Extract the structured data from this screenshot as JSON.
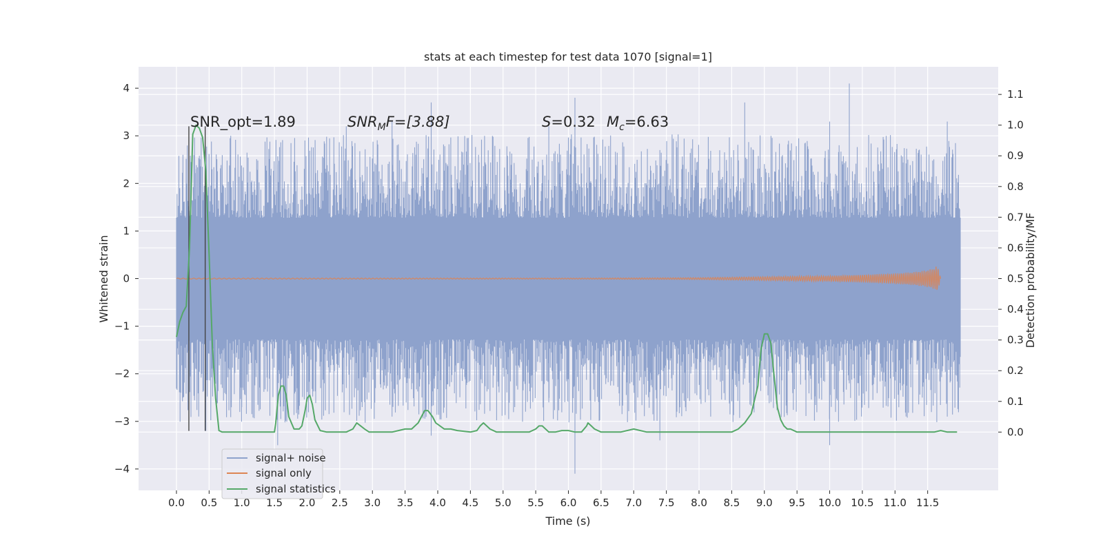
{
  "chart_data": {
    "type": "line",
    "title": "stats at each timestep for test data 1070 [signal=1]",
    "xlabel": "Time (s)",
    "ylabel": "Whitened strain",
    "ylabel_right": "Detection probability/MF",
    "xlim": [
      -0.58,
      12.58
    ],
    "ylim": [
      -4.45,
      4.45
    ],
    "ylim_right": [
      -0.19,
      1.19
    ],
    "x_ticks": [
      "0.0",
      "0.5",
      "1.0",
      "1.5",
      "2.0",
      "2.5",
      "3.0",
      "3.5",
      "4.0",
      "4.5",
      "5.0",
      "5.5",
      "6.0",
      "6.5",
      "7.0",
      "7.5",
      "8.0",
      "8.5",
      "9.0",
      "9.5",
      "10.0",
      "10.5",
      "11.0",
      "11.5"
    ],
    "y_ticks": [
      "4",
      "3",
      "2",
      "1",
      "0",
      "−1",
      "−2",
      "−3",
      "−4"
    ],
    "y_ticks_right": [
      "1.1",
      "1.0",
      "0.9",
      "0.8",
      "0.7",
      "0.6",
      "0.5",
      "0.4",
      "0.3",
      "0.2",
      "0.1",
      "0.0"
    ],
    "grid": true,
    "legend_position": "lower-left",
    "annotations": {
      "snr_opt": "SNR_opt=1.89",
      "snr_mf_var": "SNR",
      "snr_mf_sub": "M",
      "snr_mf_rest": "F=[3.88]",
      "s_var": "S",
      "s_rest": "=0.32",
      "mc_var": "M",
      "mc_sub": "c",
      "mc_rest": "=6.63"
    },
    "vertical_markers_x": [
      0.19,
      0.44
    ],
    "series": [
      {
        "name": "signal+ noise",
        "color": "#8ea2cc",
        "style": "dense noise band",
        "x_range": [
          0.0,
          12.0
        ],
        "core_half_width": 1.28,
        "spikes": [
          [
            0.05,
            1.9,
            -2.3
          ],
          [
            0.1,
            2.6,
            -2.5
          ],
          [
            0.3,
            2.3,
            -1.9
          ],
          [
            0.45,
            2.2,
            -3.2
          ],
          [
            1.0,
            2.0,
            -2.7
          ],
          [
            1.55,
            2.4,
            -3.5
          ],
          [
            2.6,
            3.2,
            -2.3
          ],
          [
            3.3,
            3.3,
            -2.9
          ],
          [
            3.9,
            3.7,
            -3.3
          ],
          [
            5.7,
            3.2,
            -2.6
          ],
          [
            6.1,
            3.8,
            -4.1
          ],
          [
            7.4,
            2.7,
            -3.4
          ],
          [
            8.7,
            3.7,
            -2.1
          ],
          [
            10.0,
            3.3,
            -3.5
          ],
          [
            10.3,
            4.1,
            -2.2
          ],
          [
            11.8,
            3.3,
            -2.9
          ]
        ]
      },
      {
        "name": "signal only",
        "color": "#dd8452",
        "style": "chirp",
        "x": [
          0.0,
          6.0,
          8.0,
          9.0,
          10.0,
          10.5,
          11.0,
          11.3,
          11.5,
          11.6,
          11.65,
          11.7
        ],
        "envelope": [
          0.01,
          0.01,
          0.02,
          0.04,
          0.06,
          0.08,
          0.11,
          0.14,
          0.18,
          0.22,
          0.28,
          0.0
        ]
      },
      {
        "name": "signal statistics",
        "color": "#55a868",
        "axis": "right",
        "x": [
          0.0,
          0.05,
          0.1,
          0.15,
          0.2,
          0.25,
          0.3,
          0.35,
          0.4,
          0.45,
          0.5,
          0.55,
          0.6,
          0.65,
          0.7,
          0.8,
          0.9,
          1.0,
          1.1,
          1.2,
          1.3,
          1.4,
          1.5,
          1.52,
          1.56,
          1.6,
          1.64,
          1.68,
          1.72,
          1.8,
          1.88,
          1.92,
          1.97,
          2.0,
          2.04,
          2.08,
          2.12,
          2.2,
          2.3,
          2.4,
          2.5,
          2.6,
          2.7,
          2.76,
          2.82,
          2.88,
          2.95,
          3.0,
          3.1,
          3.3,
          3.4,
          3.5,
          3.6,
          3.7,
          3.8,
          3.85,
          3.92,
          3.97,
          4.1,
          4.2,
          4.3,
          4.5,
          4.6,
          4.65,
          4.7,
          4.8,
          4.9,
          5.0,
          5.2,
          5.4,
          5.5,
          5.55,
          5.6,
          5.7,
          5.8,
          5.9,
          6.0,
          6.1,
          6.2,
          6.28,
          6.3,
          6.35,
          6.4,
          6.5,
          6.8,
          7.0,
          7.2,
          7.5,
          8.0,
          8.5,
          8.6,
          8.7,
          8.8,
          8.9,
          8.95,
          9.0,
          9.05,
          9.1,
          9.15,
          9.2,
          9.25,
          9.3,
          9.35,
          9.4,
          9.5,
          9.6,
          9.7,
          9.8,
          10.0,
          11.0,
          11.3,
          11.5,
          11.6,
          11.7,
          11.8,
          11.9,
          11.95
        ],
        "values": [
          0.31,
          0.36,
          0.39,
          0.41,
          0.6,
          0.97,
          1.0,
          0.99,
          0.96,
          0.85,
          0.58,
          0.28,
          0.11,
          0.005,
          0.0,
          0.0,
          0.0,
          0.0,
          0.0,
          0.0,
          0.0,
          0.0,
          0.0,
          0.03,
          0.12,
          0.15,
          0.15,
          0.12,
          0.05,
          0.01,
          0.01,
          0.02,
          0.07,
          0.11,
          0.12,
          0.09,
          0.04,
          0.005,
          0.0,
          0.0,
          0.0,
          0.0,
          0.01,
          0.03,
          0.02,
          0.01,
          0.0,
          0.0,
          0.0,
          0.0,
          0.005,
          0.01,
          0.01,
          0.03,
          0.07,
          0.07,
          0.05,
          0.03,
          0.01,
          0.01,
          0.005,
          0.0,
          0.005,
          0.02,
          0.03,
          0.01,
          0.0,
          0.0,
          0.0,
          0.0,
          0.01,
          0.02,
          0.02,
          0.0,
          0.0,
          0.005,
          0.005,
          0.0,
          0.0,
          0.02,
          0.03,
          0.02,
          0.01,
          0.0,
          0.0,
          0.01,
          0.0,
          0.0,
          0.0,
          0.0,
          0.01,
          0.03,
          0.06,
          0.15,
          0.27,
          0.32,
          0.32,
          0.29,
          0.18,
          0.08,
          0.04,
          0.02,
          0.01,
          0.01,
          0.0,
          0.0,
          0.0,
          0.0,
          0.0,
          0.0,
          0.0,
          0.0,
          0.0,
          0.005,
          0.0,
          0.0,
          0.0
        ]
      }
    ]
  }
}
